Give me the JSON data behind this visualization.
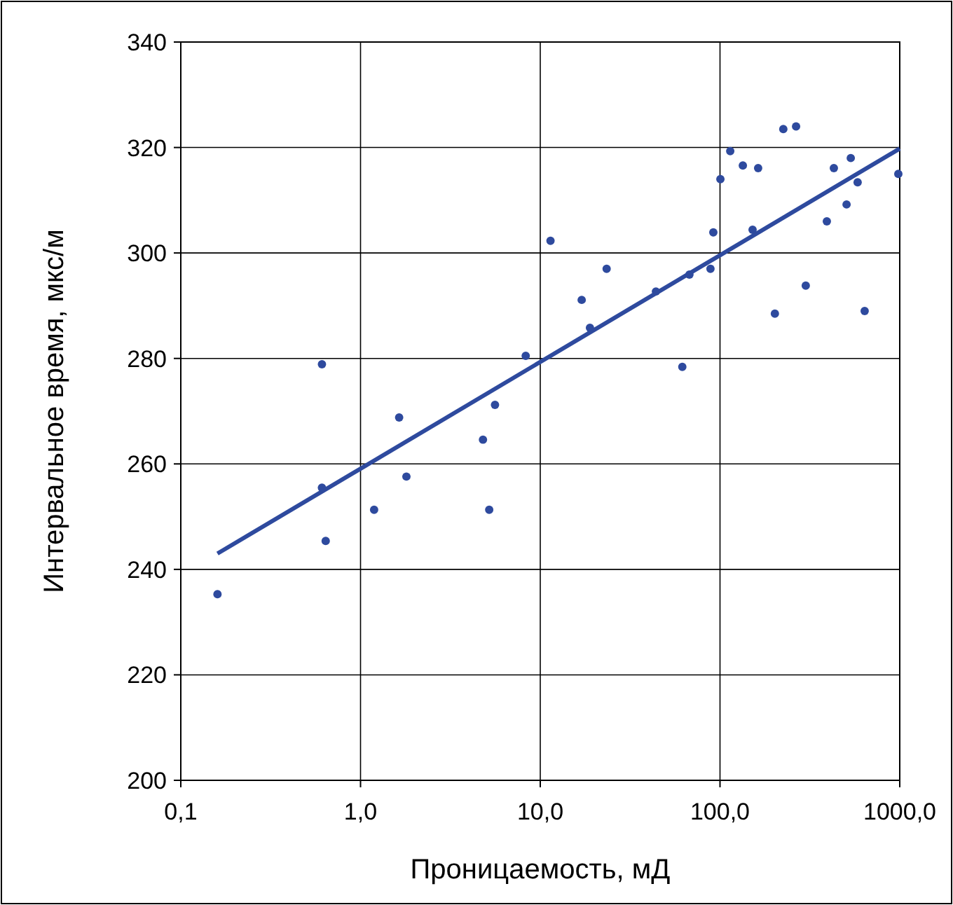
{
  "chart_data": {
    "type": "scatter",
    "xlabel": "Проницаемость, мД",
    "ylabel": "Интервальное время, мкс/м",
    "log": "x",
    "grid": true,
    "xlim": [
      0.1,
      1000
    ],
    "xticks": [
      {
        "value": 0.1,
        "label": "0,1"
      },
      {
        "value": 1,
        "label": "1,0"
      },
      {
        "value": 10,
        "label": "10,0"
      },
      {
        "value": 100,
        "label": "100,0"
      },
      {
        "value": 1000,
        "label": "1000,0"
      }
    ],
    "ylim": [
      200,
      340
    ],
    "yticks": [
      200,
      220,
      240,
      260,
      280,
      300,
      320,
      340
    ],
    "series": [
      {
        "marker": "circle",
        "color": "#2e4a9e",
        "x": [
          0.16,
          0.61,
          0.61,
          0.64,
          1.19,
          1.64,
          1.8,
          4.8,
          5.2,
          5.6,
          8.3,
          11.4,
          17,
          18.9,
          23.4,
          44,
          61.7,
          67.6,
          88.5,
          91.8,
          100.5,
          114,
          134,
          151.8,
          163,
          202,
          225,
          265,
          300,
          393,
          430,
          506,
          534,
          583,
          638,
          982
        ],
        "values": [
          235.3,
          278.9,
          255.5,
          245.4,
          251.3,
          268.8,
          257.6,
          264.6,
          251.3,
          271.2,
          280.5,
          302.3,
          291.1,
          285.8,
          297,
          292.7,
          278.4,
          295.9,
          297,
          303.9,
          314,
          319.3,
          316.6,
          304.4,
          316.1,
          288.5,
          323.5,
          324,
          293.8,
          306,
          316.1,
          309.2,
          318,
          313.4,
          289,
          315
        ]
      },
      {
        "type": "line",
        "color": "#2e4a9e",
        "x": [
          0.16,
          1000
        ],
        "values": [
          243,
          319.8
        ]
      }
    ]
  }
}
